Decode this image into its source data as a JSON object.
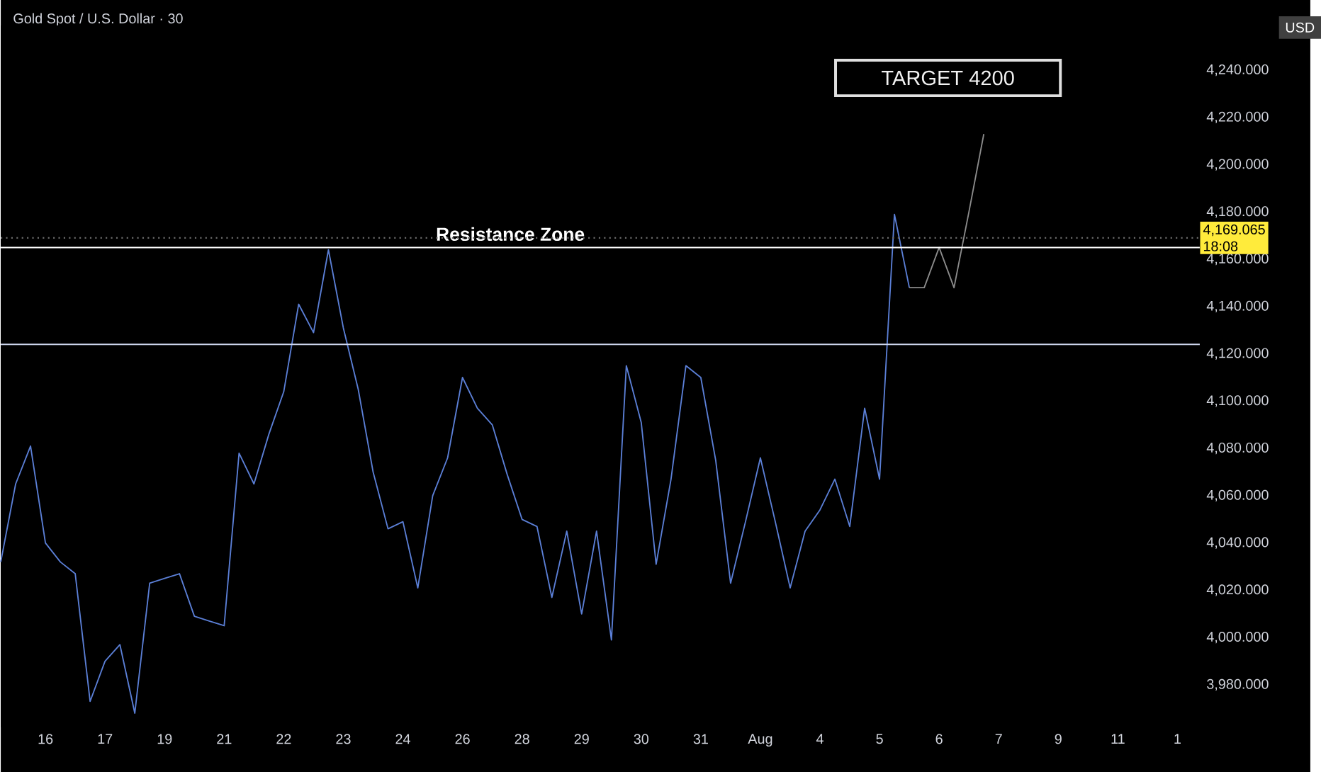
{
  "chart_data": {
    "type": "line",
    "title": "Gold Spot / U.S. Dollar · 30",
    "ylabel": "USD",
    "categories": [
      null,
      null,
      null,
      "16",
      null,
      null,
      null,
      "17",
      null,
      null,
      null,
      "19",
      null,
      null,
      null,
      "21",
      null,
      null,
      null,
      "22",
      null,
      null,
      null,
      "23",
      null,
      null,
      null,
      "24",
      null,
      null,
      null,
      "26",
      null,
      null,
      null,
      "28",
      null,
      null,
      null,
      "29",
      null,
      null,
      null,
      "30",
      null,
      null,
      null,
      "31",
      null,
      null,
      null,
      "Aug",
      null,
      null,
      null,
      "4",
      null,
      null,
      null,
      "5",
      null,
      null,
      null,
      "6",
      null,
      null,
      null,
      "7",
      null,
      null,
      null,
      "9",
      null,
      null,
      null,
      "11",
      null,
      null,
      null,
      "1"
    ],
    "ylim": [
      3962,
      4259
    ],
    "yticks": [
      {
        "value": 3980,
        "label": "3,980.000"
      },
      {
        "value": 4000,
        "label": "4,000.000"
      },
      {
        "value": 4020,
        "label": "4,020.000"
      },
      {
        "value": 4040,
        "label": "4,040.000"
      },
      {
        "value": 4060,
        "label": "4,060.000"
      },
      {
        "value": 4080,
        "label": "4,080.000"
      },
      {
        "value": 4100,
        "label": "4,100.000"
      },
      {
        "value": 4120,
        "label": "4,120.000"
      },
      {
        "value": 4140,
        "label": "4,140.000"
      },
      {
        "value": 4160,
        "label": "4,160.000"
      },
      {
        "value": 4180,
        "label": "4,180.000"
      },
      {
        "value": 4200,
        "label": "4,200.000"
      },
      {
        "value": 4220,
        "label": "4,220.000"
      },
      {
        "value": 4240,
        "label": "4,240.000"
      }
    ],
    "series": [
      {
        "color": "#5b7fd6",
        "values": [
          4032,
          4065,
          4081,
          4040,
          4032,
          4027,
          3973,
          3990,
          3997,
          3968,
          4023,
          4025,
          4027,
          4009,
          4007,
          4005,
          4078,
          4065,
          4086,
          4104,
          4141,
          4129,
          4164,
          4131,
          4105,
          4070,
          4046,
          4049,
          4021,
          4060,
          4076,
          4110,
          4097,
          4090,
          4069,
          4050,
          4047,
          4017,
          4045,
          4010,
          4045,
          3999,
          4115,
          4091,
          4031,
          4067,
          4115,
          4110,
          4075,
          4023,
          4049,
          4076,
          4049,
          4021,
          4045,
          4054,
          4067,
          4047,
          4097,
          4067,
          4179,
          4148,
          null,
          null,
          null,
          null,
          null,
          null,
          null,
          null,
          null,
          null,
          null,
          null,
          null,
          null,
          null,
          null,
          null,
          null
        ]
      },
      {
        "color": "#8c8c8c",
        "values": [
          null,
          null,
          null,
          null,
          null,
          null,
          null,
          null,
          null,
          null,
          null,
          null,
          null,
          null,
          null,
          null,
          null,
          null,
          null,
          null,
          null,
          null,
          null,
          null,
          null,
          null,
          null,
          null,
          null,
          null,
          null,
          null,
          null,
          null,
          null,
          null,
          null,
          null,
          null,
          null,
          null,
          null,
          null,
          null,
          null,
          null,
          null,
          null,
          null,
          null,
          null,
          null,
          null,
          null,
          null,
          null,
          null,
          null,
          null,
          null,
          null,
          4148,
          4148,
          4165,
          4148,
          4180,
          4213,
          null,
          null,
          null,
          null,
          null,
          null,
          null,
          null,
          null,
          null,
          null,
          null,
          null
        ]
      }
    ],
    "ref_lines": [
      {
        "axis": "y",
        "value": 4165,
        "label": "Resistance Zone",
        "color": "#ffffff",
        "line_style": "solid"
      },
      {
        "axis": "y",
        "value": 4124,
        "color": "#d0d8f0",
        "line_style": "solid"
      },
      {
        "axis": "y",
        "value": 4169.065,
        "label": "4,169.065",
        "color": "#6a6a6a",
        "line_style": "dotted"
      }
    ],
    "annotations": [
      "TARGET 4200",
      "18:08"
    ],
    "marker": "none",
    "line_style": "solid",
    "grid": false
  }
}
